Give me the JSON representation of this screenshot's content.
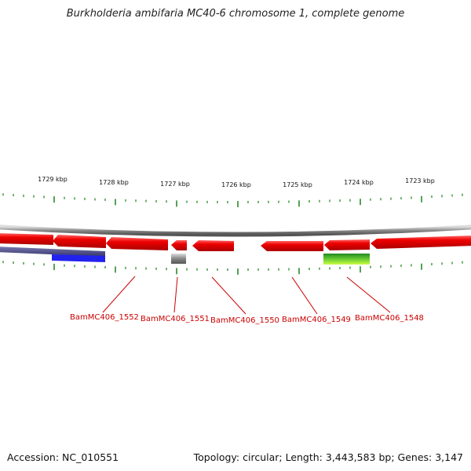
{
  "title": "Burkholderia ambifaria MC40-6 chromosome 1, complete genome",
  "footer": {
    "accession": "Accession: NC_010551",
    "summary": "Topology: circular; Length: 3,443,583 bp; Genes: 3,147"
  },
  "scale_labels": [
    "1729 kbp",
    "1728 kbp",
    "1727 kbp",
    "1726 kbp",
    "1725 kbp",
    "1724 kbp",
    "1723 kbp"
  ],
  "gene_labels": [
    "BamMC406_1552",
    "BamMC406_1551",
    "BamMC406_1550",
    "BamMC406_1549",
    "BamMC406_1548"
  ],
  "colors": {
    "gene_red": "#ee0000",
    "backbone_gray": "#8a8a8a",
    "tick_green": "#2a8a2a",
    "label_red": "#cc0000",
    "track_blue": "#3333cc",
    "track_navy": "#4a4a8a",
    "track_green": "#55aa22",
    "track_gray": "#777777"
  }
}
